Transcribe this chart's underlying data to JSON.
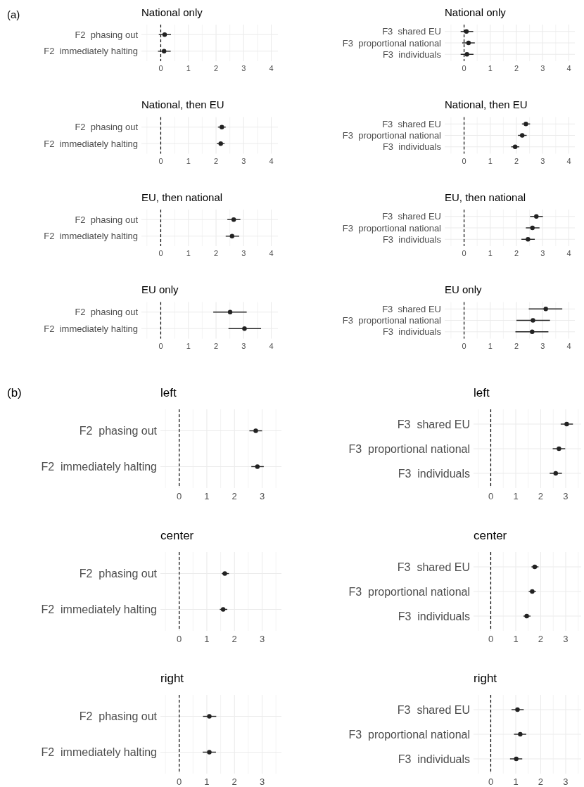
{
  "chart_data": [
    {
      "type": "scatter",
      "title": "National only",
      "annotations": [
        "(a)"
      ],
      "orientation": "horizontal",
      "categories": [
        "F2  phasing out",
        "F2  immediately halting"
      ],
      "values": [
        0.14,
        0.12
      ],
      "errors": [
        [
          -0.07,
          0.37
        ],
        [
          -0.1,
          0.36
        ]
      ],
      "color": "#222222",
      "marker": "circle",
      "xlim": [
        -0.7,
        4.24
      ],
      "xticks": [
        {
          "value": -0.5,
          "label": null
        },
        0,
        {
          "value": 0.5,
          "label": null
        },
        1,
        {
          "value": 1.5,
          "label": null
        },
        2,
        {
          "value": 2.5,
          "label": null
        },
        3,
        {
          "value": 3.5,
          "label": null
        },
        4
      ],
      "grid": true,
      "ref_lines": [
        {
          "axis": "x",
          "value": 0,
          "line_style": "dashed",
          "color": "#000000"
        }
      ]
    },
    {
      "type": "scatter",
      "title": "National only",
      "orientation": "horizontal",
      "categories": [
        "F3  shared EU",
        "F3  proportional national",
        "F3  individuals"
      ],
      "values": [
        0.09,
        0.17,
        0.11
      ],
      "errors": [
        [
          -0.13,
          0.35
        ],
        [
          -0.07,
          0.41
        ],
        [
          -0.13,
          0.36
        ]
      ],
      "color": "#222222",
      "marker": "circle",
      "xlim": [
        -0.74,
        4.23
      ],
      "xticks": [
        {
          "value": -0.5,
          "label": null
        },
        0,
        {
          "value": 0.5,
          "label": null
        },
        1,
        {
          "value": 1.5,
          "label": null
        },
        2,
        {
          "value": 2.5,
          "label": null
        },
        3,
        {
          "value": 3.5,
          "label": null
        },
        4
      ],
      "grid": true,
      "ref_lines": [
        {
          "axis": "x",
          "value": 0,
          "line_style": "dashed",
          "color": "#000000"
        }
      ]
    },
    {
      "type": "scatter",
      "title": "National, then EU",
      "orientation": "horizontal",
      "categories": [
        "F2  phasing out",
        "F2  immediately halting"
      ],
      "values": [
        2.21,
        2.17
      ],
      "errors": [
        [
          2.07,
          2.35
        ],
        [
          2.03,
          2.31
        ]
      ],
      "color": "#222222",
      "marker": "circle",
      "xlim": [
        -0.7,
        4.24
      ],
      "xticks": [
        {
          "value": -0.5,
          "label": null
        },
        0,
        {
          "value": 0.5,
          "label": null
        },
        1,
        {
          "value": 1.5,
          "label": null
        },
        2,
        {
          "value": 2.5,
          "label": null
        },
        3,
        {
          "value": 3.5,
          "label": null
        },
        4
      ],
      "grid": true,
      "ref_lines": [
        {
          "axis": "x",
          "value": 0,
          "line_style": "dashed",
          "color": "#000000"
        }
      ]
    },
    {
      "type": "scatter",
      "title": "National, then EU",
      "orientation": "horizontal",
      "categories": [
        "F3  shared EU",
        "F3  proportional national",
        "F3  individuals"
      ],
      "values": [
        2.36,
        2.22,
        1.95
      ],
      "errors": [
        [
          2.21,
          2.52
        ],
        [
          2.06,
          2.39
        ],
        [
          1.8,
          2.11
        ]
      ],
      "color": "#222222",
      "marker": "circle",
      "xlim": [
        -0.74,
        4.23
      ],
      "xticks": [
        {
          "value": -0.5,
          "label": null
        },
        0,
        {
          "value": 0.5,
          "label": null
        },
        1,
        {
          "value": 1.5,
          "label": null
        },
        2,
        {
          "value": 2.5,
          "label": null
        },
        3,
        {
          "value": 3.5,
          "label": null
        },
        4
      ],
      "grid": true,
      "ref_lines": [
        {
          "axis": "x",
          "value": 0,
          "line_style": "dashed",
          "color": "#000000"
        }
      ]
    },
    {
      "type": "scatter",
      "title": "EU, then national",
      "orientation": "horizontal",
      "categories": [
        "F2  phasing out",
        "F2  immediately halting"
      ],
      "values": [
        2.64,
        2.58
      ],
      "errors": [
        [
          2.41,
          2.88
        ],
        [
          2.35,
          2.84
        ]
      ],
      "color": "#222222",
      "marker": "circle",
      "xlim": [
        -0.7,
        4.24
      ],
      "xticks": [
        {
          "value": -0.5,
          "label": null
        },
        0,
        {
          "value": 0.5,
          "label": null
        },
        1,
        {
          "value": 1.5,
          "label": null
        },
        2,
        {
          "value": 2.5,
          "label": null
        },
        3,
        {
          "value": 3.5,
          "label": null
        },
        4
      ],
      "grid": true,
      "ref_lines": [
        {
          "axis": "x",
          "value": 0,
          "line_style": "dashed",
          "color": "#000000"
        }
      ]
    },
    {
      "type": "scatter",
      "title": "EU, then national",
      "orientation": "horizontal",
      "categories": [
        "F3  shared EU",
        "F3  proportional national",
        "F3  individuals"
      ],
      "values": [
        2.76,
        2.61,
        2.44
      ],
      "errors": [
        [
          2.52,
          3.01
        ],
        [
          2.36,
          2.88
        ],
        [
          2.19,
          2.7
        ]
      ],
      "color": "#222222",
      "marker": "circle",
      "xlim": [
        -0.74,
        4.23
      ],
      "xticks": [
        {
          "value": -0.5,
          "label": null
        },
        0,
        {
          "value": 0.5,
          "label": null
        },
        1,
        {
          "value": 1.5,
          "label": null
        },
        2,
        {
          "value": 2.5,
          "label": null
        },
        3,
        {
          "value": 3.5,
          "label": null
        },
        4
      ],
      "grid": true,
      "ref_lines": [
        {
          "axis": "x",
          "value": 0,
          "line_style": "dashed",
          "color": "#000000"
        }
      ]
    },
    {
      "type": "scatter",
      "title": "EU only",
      "orientation": "horizontal",
      "categories": [
        "F2  phasing out",
        "F2  immediately halting"
      ],
      "values": [
        2.51,
        3.03
      ],
      "errors": [
        [
          1.9,
          3.11
        ],
        [
          2.45,
          3.63
        ]
      ],
      "color": "#222222",
      "marker": "circle",
      "xlim": [
        -0.7,
        4.24
      ],
      "xticks": [
        {
          "value": -0.5,
          "label": null
        },
        0,
        {
          "value": 0.5,
          "label": null
        },
        1,
        {
          "value": 1.5,
          "label": null
        },
        2,
        {
          "value": 2.5,
          "label": null
        },
        3,
        {
          "value": 3.5,
          "label": null
        },
        4
      ],
      "grid": true,
      "ref_lines": [
        {
          "axis": "x",
          "value": 0,
          "line_style": "dashed",
          "color": "#000000"
        }
      ]
    },
    {
      "type": "scatter",
      "title": "EU only",
      "orientation": "horizontal",
      "categories": [
        "F3  shared EU",
        "F3  proportional national",
        "F3  individuals"
      ],
      "values": [
        3.12,
        2.63,
        2.6
      ],
      "errors": [
        [
          2.47,
          3.75
        ],
        [
          2.0,
          3.28
        ],
        [
          1.96,
          3.22
        ]
      ],
      "color": "#222222",
      "marker": "circle",
      "xlim": [
        -0.74,
        4.23
      ],
      "xticks": [
        {
          "value": -0.5,
          "label": null
        },
        0,
        {
          "value": 0.5,
          "label": null
        },
        1,
        {
          "value": 1.5,
          "label": null
        },
        2,
        {
          "value": 2.5,
          "label": null
        },
        3,
        {
          "value": 3.5,
          "label": null
        },
        4
      ],
      "grid": true,
      "ref_lines": [
        {
          "axis": "x",
          "value": 0,
          "line_style": "dashed",
          "color": "#000000"
        }
      ]
    },
    {
      "type": "scatter",
      "title": "left",
      "annotations": [
        "(b)"
      ],
      "orientation": "horizontal",
      "categories": [
        "F2  phasing out",
        "F2  immediately halting"
      ],
      "values": [
        2.77,
        2.83
      ],
      "errors": [
        [
          2.54,
          3.0
        ],
        [
          2.61,
          3.06
        ]
      ],
      "color": "#222222",
      "marker": "circle",
      "xlim": [
        -0.68,
        3.7
      ],
      "xticks": [
        {
          "value": -0.5,
          "label": null
        },
        0,
        {
          "value": 0.5,
          "label": null
        },
        1,
        {
          "value": 1.5,
          "label": null
        },
        2,
        {
          "value": 2.5,
          "label": null
        },
        3,
        {
          "value": 3.5,
          "label": null
        }
      ],
      "grid": true,
      "ref_lines": [
        {
          "axis": "x",
          "value": 0,
          "line_style": "dashed",
          "color": "#000000"
        }
      ]
    },
    {
      "type": "scatter",
      "title": "left",
      "orientation": "horizontal",
      "categories": [
        "F3  shared EU",
        "F3  proportional national",
        "F3  individuals"
      ],
      "values": [
        3.04,
        2.73,
        2.6
      ],
      "errors": [
        [
          2.8,
          3.29
        ],
        [
          2.48,
          2.98
        ],
        [
          2.36,
          2.85
        ]
      ],
      "color": "#222222",
      "marker": "circle",
      "xlim": [
        -0.69,
        3.62
      ],
      "xticks": [
        {
          "value": -0.5,
          "label": null
        },
        0,
        {
          "value": 0.5,
          "label": null
        },
        1,
        {
          "value": 1.5,
          "label": null
        },
        2,
        {
          "value": 2.5,
          "label": null
        },
        3,
        {
          "value": 3.5,
          "label": null
        }
      ],
      "grid": true,
      "ref_lines": [
        {
          "axis": "x",
          "value": 0,
          "line_style": "dashed",
          "color": "#000000"
        }
      ]
    },
    {
      "type": "scatter",
      "title": "center",
      "orientation": "horizontal",
      "categories": [
        "F2  phasing out",
        "F2  immediately halting"
      ],
      "values": [
        1.65,
        1.59
      ],
      "errors": [
        [
          1.54,
          1.8
        ],
        [
          1.47,
          1.74
        ]
      ],
      "color": "#222222",
      "marker": "circle",
      "xlim": [
        -0.68,
        3.7
      ],
      "xticks": [
        {
          "value": -0.5,
          "label": null
        },
        0,
        {
          "value": 0.5,
          "label": null
        },
        1,
        {
          "value": 1.5,
          "label": null
        },
        2,
        {
          "value": 2.5,
          "label": null
        },
        3,
        {
          "value": 3.5,
          "label": null
        }
      ],
      "grid": true,
      "ref_lines": [
        {
          "axis": "x",
          "value": 0,
          "line_style": "dashed",
          "color": "#000000"
        }
      ]
    },
    {
      "type": "scatter",
      "title": "center",
      "orientation": "horizontal",
      "categories": [
        "F3  shared EU",
        "F3  proportional national",
        "F3  individuals"
      ],
      "values": [
        1.76,
        1.66,
        1.44
      ],
      "errors": [
        [
          1.63,
          1.91
        ],
        [
          1.52,
          1.81
        ],
        [
          1.31,
          1.59
        ]
      ],
      "color": "#222222",
      "marker": "circle",
      "xlim": [
        -0.69,
        3.62
      ],
      "xticks": [
        {
          "value": -0.5,
          "label": null
        },
        0,
        {
          "value": 0.5,
          "label": null
        },
        1,
        {
          "value": 1.5,
          "label": null
        },
        2,
        {
          "value": 2.5,
          "label": null
        },
        3,
        {
          "value": 3.5,
          "label": null
        }
      ],
      "grid": true,
      "ref_lines": [
        {
          "axis": "x",
          "value": 0,
          "line_style": "dashed",
          "color": "#000000"
        }
      ]
    },
    {
      "type": "scatter",
      "title": "right",
      "orientation": "horizontal",
      "categories": [
        "F2  phasing out",
        "F2  immediately halting"
      ],
      "values": [
        1.09,
        1.09
      ],
      "errors": [
        [
          0.86,
          1.34
        ],
        [
          0.85,
          1.33
        ]
      ],
      "color": "#222222",
      "marker": "circle",
      "xlim": [
        -0.68,
        3.7
      ],
      "xticks": [
        {
          "value": -0.5,
          "label": null
        },
        0,
        {
          "value": 0.5,
          "label": null
        },
        1,
        {
          "value": 1.5,
          "label": null
        },
        2,
        {
          "value": 2.5,
          "label": null
        },
        3,
        {
          "value": 3.5,
          "label": null
        }
      ],
      "grid": true,
      "ref_lines": [
        {
          "axis": "x",
          "value": 0,
          "line_style": "dashed",
          "color": "#000000"
        }
      ]
    },
    {
      "type": "scatter",
      "title": "right",
      "orientation": "horizontal",
      "categories": [
        "F3  shared EU",
        "F3  proportional national",
        "F3  individuals"
      ],
      "values": [
        1.07,
        1.18,
        1.02
      ],
      "errors": [
        [
          0.83,
          1.32
        ],
        [
          0.93,
          1.42
        ],
        [
          0.77,
          1.26
        ]
      ],
      "color": "#222222",
      "marker": "circle",
      "xlim": [
        -0.69,
        3.62
      ],
      "xticks": [
        {
          "value": -0.5,
          "label": null
        },
        0,
        {
          "value": 0.5,
          "label": null
        },
        1,
        {
          "value": 1.5,
          "label": null
        },
        2,
        {
          "value": 2.5,
          "label": null
        },
        3,
        {
          "value": 3.5,
          "label": null
        }
      ],
      "grid": true,
      "ref_lines": [
        {
          "axis": "x",
          "value": 0,
          "line_style": "dashed",
          "color": "#000000"
        }
      ]
    }
  ]
}
